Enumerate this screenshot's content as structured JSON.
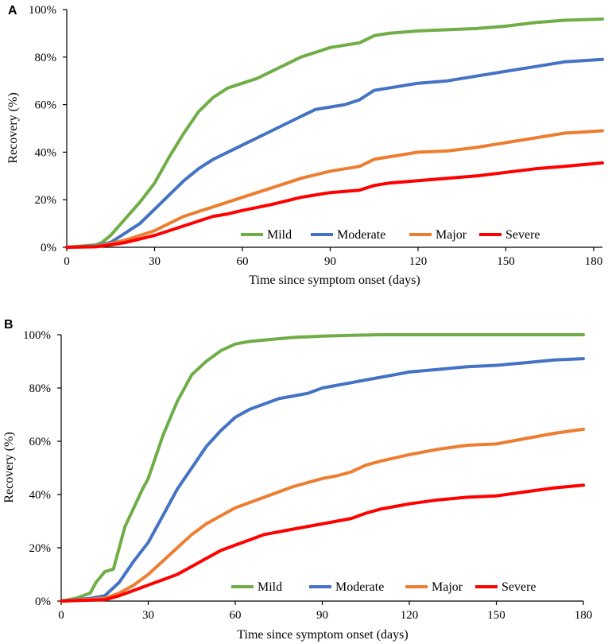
{
  "chart_data": [
    {
      "type": "line",
      "panel": "A",
      "title": "",
      "xlabel": "Time since symptom onset (days)",
      "ylabel": "Recovery (%)",
      "xlim": [
        0,
        183
      ],
      "ylim": [
        0,
        100
      ],
      "xticks": [
        0,
        30,
        60,
        90,
        120,
        150,
        180
      ],
      "yticks": [
        0,
        20,
        40,
        60,
        80,
        100
      ],
      "ytick_labels": [
        "0%",
        "20%",
        "40%",
        "60%",
        "80%",
        "100%"
      ],
      "legend_position": "bottom-right",
      "series": [
        {
          "name": "Mild",
          "color": "#70AD47",
          "x": [
            0,
            5,
            10,
            12,
            15,
            20,
            25,
            30,
            35,
            40,
            45,
            50,
            55,
            60,
            65,
            70,
            75,
            80,
            85,
            90,
            95,
            100,
            105,
            110,
            120,
            130,
            140,
            150,
            160,
            170,
            183
          ],
          "y": [
            0,
            0.5,
            1,
            2,
            5,
            12,
            19,
            27,
            38,
            48,
            57,
            63,
            67,
            69,
            71,
            74,
            77,
            80,
            82,
            84,
            85,
            86,
            89,
            90,
            91,
            91.5,
            92,
            93,
            94.5,
            95.5,
            96
          ]
        },
        {
          "name": "Moderate",
          "color": "#4472C4",
          "x": [
            0,
            10,
            15,
            20,
            25,
            30,
            35,
            40,
            45,
            50,
            55,
            60,
            65,
            70,
            75,
            80,
            85,
            90,
            95,
            100,
            105,
            110,
            120,
            130,
            140,
            150,
            160,
            170,
            183
          ],
          "y": [
            0,
            0.5,
            2,
            6,
            10,
            16,
            22,
            28,
            33,
            37,
            40,
            43,
            46,
            49,
            52,
            55,
            58,
            59,
            60,
            62,
            66,
            67,
            69,
            70,
            72,
            74,
            76,
            78,
            79
          ]
        },
        {
          "name": "Major",
          "color": "#ED7D31",
          "x": [
            0,
            10,
            15,
            20,
            25,
            30,
            35,
            40,
            45,
            50,
            55,
            60,
            70,
            80,
            90,
            100,
            105,
            110,
            120,
            130,
            140,
            150,
            160,
            170,
            183
          ],
          "y": [
            0,
            0.3,
            1.5,
            3,
            5,
            7,
            10,
            13,
            15,
            17,
            19,
            21,
            25,
            29,
            32,
            34,
            37,
            38,
            40,
            40.5,
            42,
            44,
            46,
            48,
            49
          ]
        },
        {
          "name": "Severe",
          "color": "#FF0000",
          "x": [
            0,
            10,
            15,
            20,
            25,
            30,
            35,
            40,
            45,
            50,
            55,
            60,
            70,
            80,
            90,
            100,
            105,
            110,
            120,
            130,
            140,
            150,
            160,
            170,
            183
          ],
          "y": [
            0,
            0.2,
            1,
            2,
            3.5,
            5,
            7,
            9,
            11,
            13,
            14,
            15.5,
            18,
            21,
            23,
            24,
            26,
            27,
            28,
            29,
            30,
            31.5,
            33,
            34,
            35.5
          ]
        }
      ]
    },
    {
      "type": "line",
      "panel": "B",
      "title": "",
      "xlabel": "Time since symptom onset (days)",
      "ylabel": "Recovery (%)",
      "xlim": [
        0,
        180
      ],
      "ylim": [
        0,
        100
      ],
      "xticks": [
        0,
        30,
        60,
        90,
        120,
        150,
        180
      ],
      "yticks": [
        0,
        20,
        40,
        60,
        80,
        100
      ],
      "ytick_labels": [
        "0%",
        "20%",
        "40%",
        "60%",
        "80%",
        "100%"
      ],
      "legend_position": "bottom-right",
      "series": [
        {
          "name": "Mild",
          "color": "#70AD47",
          "x": [
            0,
            5,
            10,
            12,
            15,
            18,
            20,
            22,
            25,
            28,
            30,
            35,
            40,
            45,
            50,
            55,
            60,
            65,
            70,
            80,
            90,
            100,
            110,
            120,
            150,
            180
          ],
          "y": [
            0,
            1,
            3,
            7,
            11,
            12,
            20,
            28,
            35,
            42,
            46,
            62,
            75,
            85,
            90,
            94,
            96.5,
            97.5,
            98,
            99,
            99.5,
            99.8,
            100,
            100,
            100,
            100
          ]
        },
        {
          "name": "Moderate",
          "color": "#4472C4",
          "x": [
            0,
            10,
            15,
            20,
            25,
            30,
            35,
            40,
            45,
            50,
            55,
            60,
            65,
            70,
            75,
            80,
            85,
            90,
            95,
            100,
            105,
            110,
            120,
            130,
            140,
            150,
            160,
            170,
            180
          ],
          "y": [
            0,
            1,
            2,
            7,
            15,
            22,
            32,
            42,
            50,
            58,
            64,
            69,
            72,
            74,
            76,
            77,
            78,
            80,
            81,
            82,
            83,
            84,
            86,
            87,
            88,
            88.5,
            89.5,
            90.5,
            91
          ]
        },
        {
          "name": "Major",
          "color": "#ED7D31",
          "x": [
            0,
            15,
            20,
            25,
            30,
            35,
            40,
            45,
            50,
            55,
            60,
            65,
            70,
            75,
            80,
            85,
            90,
            95,
            100,
            105,
            110,
            120,
            130,
            140,
            150,
            160,
            170,
            180
          ],
          "y": [
            0,
            1,
            3,
            6,
            10,
            15,
            20,
            25,
            29,
            32,
            35,
            37,
            39,
            41,
            43,
            44.5,
            46,
            47,
            48.5,
            51,
            52.5,
            55,
            57,
            58.5,
            59,
            61,
            63,
            64.5
          ]
        },
        {
          "name": "Severe",
          "color": "#FF0000",
          "x": [
            0,
            15,
            20,
            25,
            30,
            35,
            40,
            45,
            50,
            55,
            60,
            65,
            70,
            80,
            90,
            100,
            105,
            110,
            120,
            130,
            140,
            150,
            160,
            170,
            180
          ],
          "y": [
            0,
            0.5,
            2,
            4,
            6,
            8,
            10,
            13,
            16,
            19,
            21,
            23,
            25,
            27,
            29,
            31,
            33,
            34.5,
            36.5,
            38,
            39,
            39.5,
            41,
            42.5,
            43.5
          ]
        }
      ]
    }
  ]
}
